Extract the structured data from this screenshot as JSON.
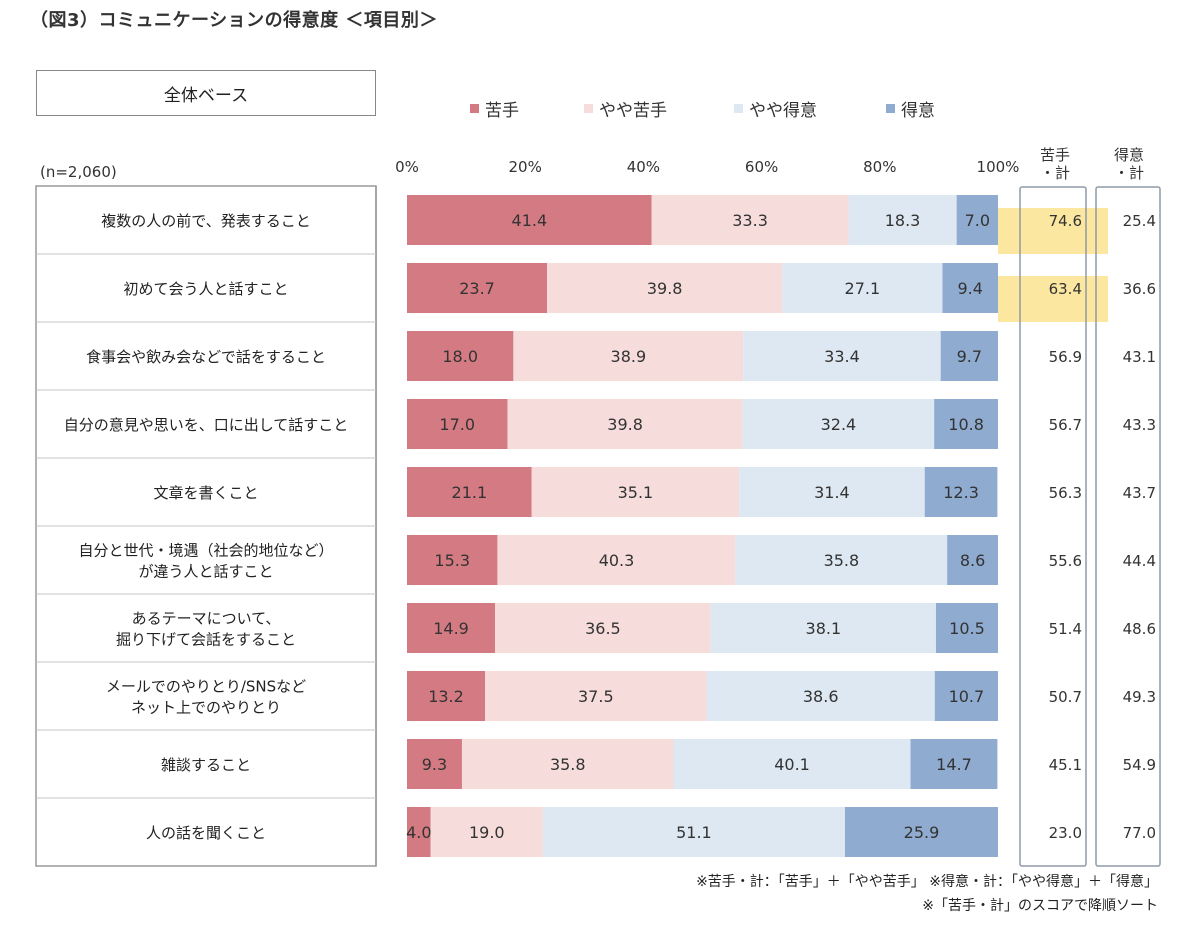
{
  "title": "（図3）コミュニケーションの得意度 ＜項目別＞",
  "base_label": "全体ベース",
  "sample_label": "(n=2,060)",
  "column_headers": {
    "weak_total": "苦手\n・計",
    "strong_total": "得意\n・計"
  },
  "footnotes": [
    "※苦手・計：「苦手」＋「やや苦手」 ※得意・計：「やや得意」＋「得意」",
    "※「苦手・計」のスコアで降順ソート"
  ],
  "colors": {
    "苦手": "#d47a82",
    "やや苦手": "#f6dcdb",
    "やや得意": "#dee8f2",
    "得意": "#8fabd0",
    "highlight": "#fbe7a0",
    "grid": "#b0b0b0",
    "border": "#999999"
  },
  "chart_data": {
    "type": "bar",
    "orientation": "horizontal",
    "stacked": true,
    "xlim": [
      0,
      100
    ],
    "x_ticks": [
      "0%",
      "20%",
      "40%",
      "60%",
      "80%",
      "100%"
    ],
    "categories": [
      [
        "複数の人の前で、発表すること"
      ],
      [
        "初めて会う人と話すこと"
      ],
      [
        "食事会や飲み会などで話をすること"
      ],
      [
        "自分の意見や思いを、口に出して話すこと"
      ],
      [
        "文章を書くこと"
      ],
      [
        "自分と世代・境遇（社会的地位など）",
        "が違う人と話すこと"
      ],
      [
        "あるテーマについて、",
        "掘り下げて会話をすること"
      ],
      [
        "メールでのやりとり/SNSなど",
        "ネット上でのやりとり"
      ],
      [
        "雑談すること"
      ],
      [
        "人の話を聞くこと"
      ]
    ],
    "series": [
      {
        "name": "苦手",
        "values": [
          41.4,
          23.7,
          18.0,
          17.0,
          21.1,
          15.3,
          14.9,
          13.2,
          9.3,
          4.0
        ]
      },
      {
        "name": "やや苦手",
        "values": [
          33.3,
          39.8,
          38.9,
          39.8,
          35.1,
          40.3,
          36.5,
          37.5,
          35.8,
          19.0
        ]
      },
      {
        "name": "やや得意",
        "values": [
          18.3,
          27.1,
          33.4,
          32.4,
          31.4,
          35.8,
          38.1,
          38.6,
          40.1,
          51.1
        ]
      },
      {
        "name": "得意",
        "values": [
          7.0,
          9.4,
          9.7,
          10.8,
          12.3,
          8.6,
          10.5,
          10.7,
          14.7,
          25.9
        ]
      }
    ],
    "weak_total": [
      "74.6",
      "63.4",
      "56.9",
      "56.7",
      "56.3",
      "55.6",
      "51.4",
      "50.7",
      "45.1",
      "23.0"
    ],
    "strong_total": [
      "25.4",
      "36.6",
      "43.1",
      "43.3",
      "43.7",
      "44.4",
      "48.6",
      "49.3",
      "54.9",
      "77.0"
    ],
    "highlighted_rows": [
      0,
      1
    ]
  }
}
